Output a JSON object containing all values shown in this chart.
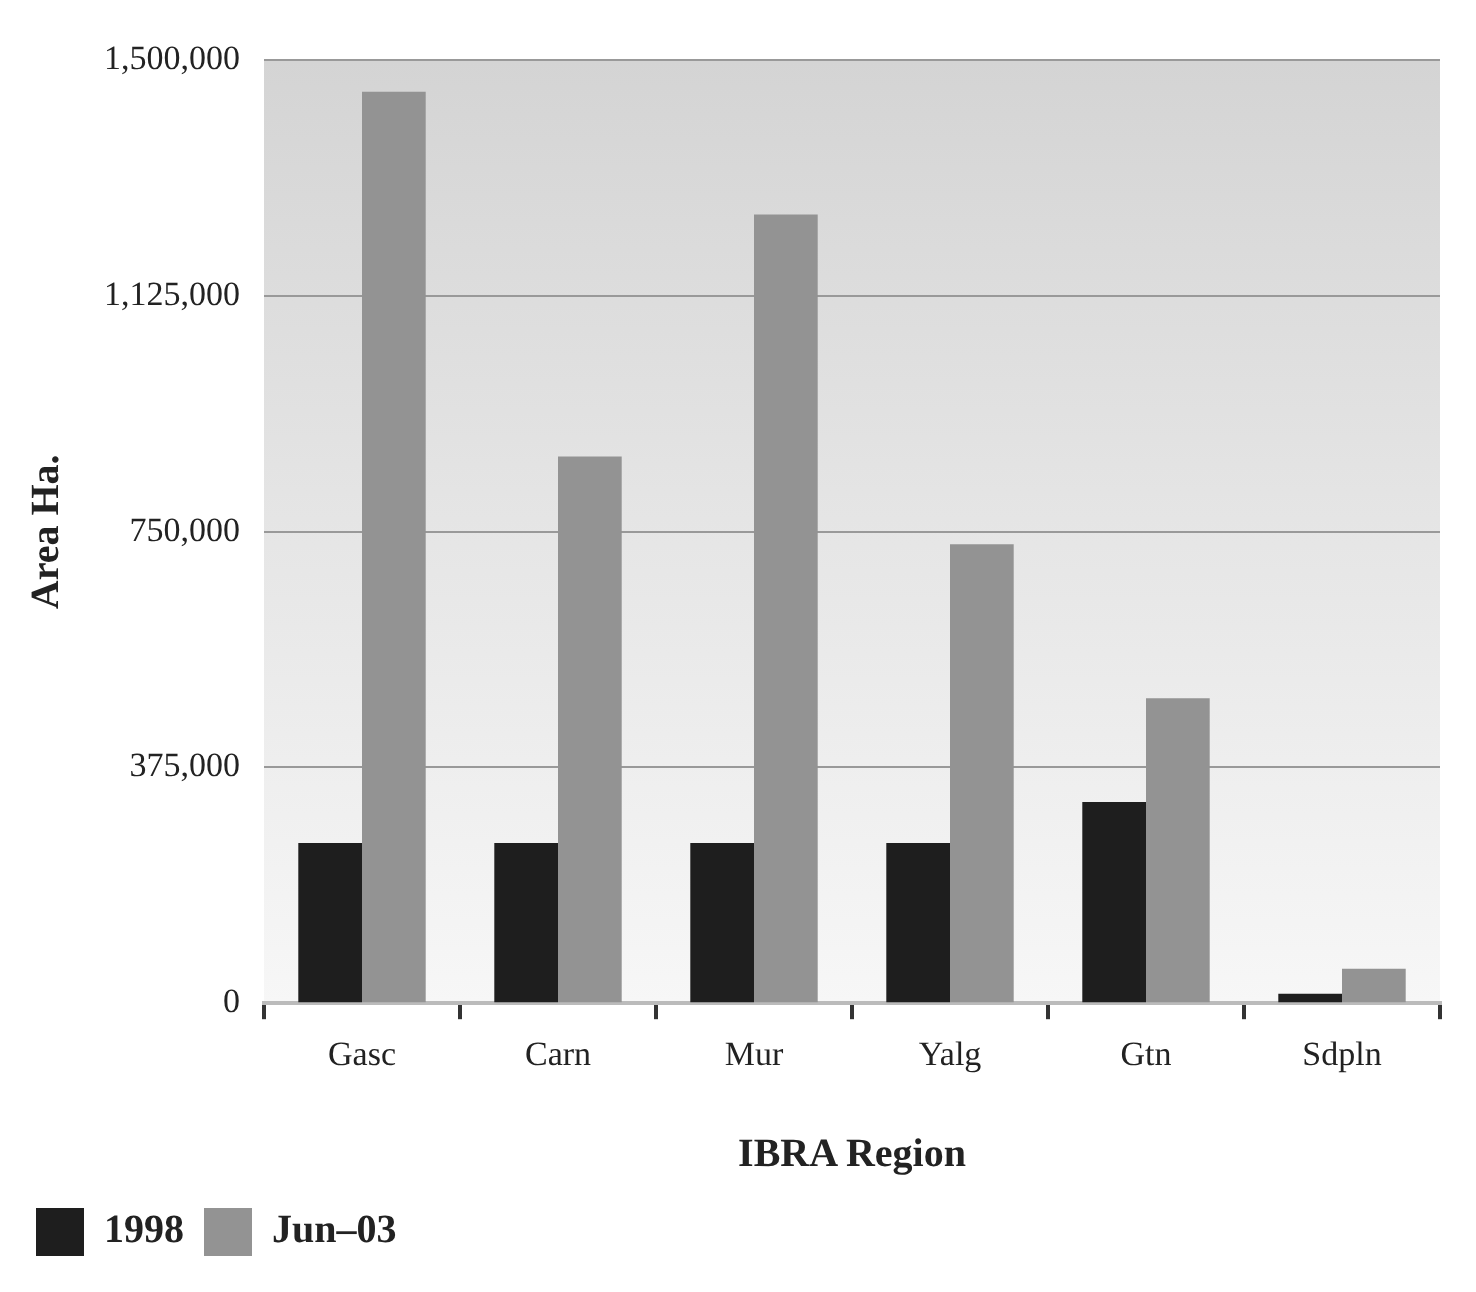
{
  "chart_data": {
    "type": "bar",
    "xlabel": "IBRA Region",
    "ylabel": "Area Ha.",
    "categories": [
      "Gasc",
      "Carn",
      "Mur",
      "Yalg",
      "Gtn",
      "Sdpln"
    ],
    "series": [
      {
        "name": "1998",
        "color": "#1e1e1e",
        "values": [
          255000,
          255000,
          255000,
          255000,
          320000,
          15000
        ]
      },
      {
        "name": "Jun–03",
        "color": "#939393",
        "values": [
          1450000,
          870000,
          1255000,
          730000,
          485000,
          55000
        ]
      }
    ],
    "ylim": [
      0,
      1500000
    ],
    "yticks": [
      {
        "value": 0,
        "label": "0"
      },
      {
        "value": 375000,
        "label": "375,000"
      },
      {
        "value": 750000,
        "label": "750,000"
      },
      {
        "value": 1125000,
        "label": "1,125,000"
      },
      {
        "value": 1500000,
        "label": "1,500,000"
      }
    ],
    "grid": "y",
    "legend": "bottom left"
  }
}
